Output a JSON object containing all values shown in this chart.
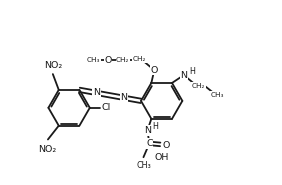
{
  "bg": "#ffffff",
  "lc": "#1a1a1a",
  "lw": 1.3,
  "fs": 6.8,
  "fs_small": 5.8,
  "r": 21,
  "lrc": [
    68,
    108
  ],
  "rrc": [
    162,
    101
  ]
}
